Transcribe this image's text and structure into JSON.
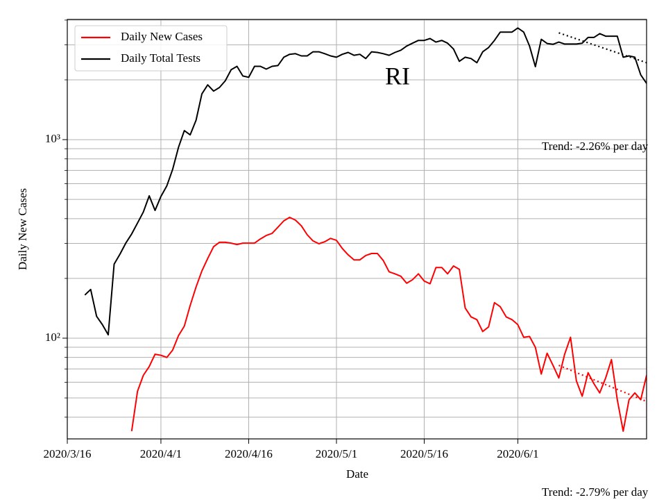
{
  "chart_data": {
    "type": "line",
    "title": "RI",
    "x_label": "Date",
    "y_label": "Daily New Cases",
    "log_scale": true,
    "grid": true,
    "legend_position": "upper left",
    "x": [
      "2020/3/19",
      "2020/3/20",
      "2020/3/21",
      "2020/3/22",
      "2020/3/23",
      "2020/3/24",
      "2020/3/25",
      "2020/3/26",
      "2020/3/27",
      "2020/3/28",
      "2020/3/29",
      "2020/3/30",
      "2020/3/31",
      "2020/4/1",
      "2020/4/2",
      "2020/4/3",
      "2020/4/4",
      "2020/4/5",
      "2020/4/6",
      "2020/4/7",
      "2020/4/8",
      "2020/4/9",
      "2020/4/10",
      "2020/4/11",
      "2020/4/12",
      "2020/4/13",
      "2020/4/14",
      "2020/4/15",
      "2020/4/16",
      "2020/4/17",
      "2020/4/18",
      "2020/4/19",
      "2020/4/20",
      "2020/4/21",
      "2020/4/22",
      "2020/4/23",
      "2020/4/24",
      "2020/4/25",
      "2020/4/26",
      "2020/4/27",
      "2020/4/28",
      "2020/4/29",
      "2020/4/30",
      "2020/5/1",
      "2020/5/2",
      "2020/5/3",
      "2020/5/4",
      "2020/5/5",
      "2020/5/6",
      "2020/5/7",
      "2020/5/8",
      "2020/5/9",
      "2020/5/10",
      "2020/5/11",
      "2020/5/12",
      "2020/5/13",
      "2020/5/14",
      "2020/5/15",
      "2020/5/16",
      "2020/5/17",
      "2020/5/18",
      "2020/5/19",
      "2020/5/20",
      "2020/5/21",
      "2020/5/22",
      "2020/5/23",
      "2020/5/24",
      "2020/5/25",
      "2020/5/26",
      "2020/5/27",
      "2020/5/28",
      "2020/5/29",
      "2020/5/30",
      "2020/5/31",
      "2020/6/1",
      "2020/6/2",
      "2020/6/3",
      "2020/6/4",
      "2020/6/5",
      "2020/6/6",
      "2020/6/7",
      "2020/6/8",
      "2020/6/9",
      "2020/6/10",
      "2020/6/11",
      "2020/6/12",
      "2020/6/13",
      "2020/6/14",
      "2020/6/15",
      "2020/6/16",
      "2020/6/17",
      "2020/6/18",
      "2020/6/19",
      "2020/6/20",
      "2020/6/21",
      "2020/6/22",
      "2020/6/23"
    ],
    "series": [
      {
        "name": "Daily New Cases",
        "color": "#ff0000",
        "values": [
          null,
          null,
          null,
          null,
          null,
          null,
          null,
          null,
          34,
          54,
          65,
          72,
          83,
          82,
          80,
          87,
          103,
          115,
          146,
          181,
          218,
          252,
          289,
          304,
          304,
          301,
          296,
          301,
          301,
          301,
          316,
          329,
          337,
          362,
          390,
          406,
          393,
          368,
          332,
          309,
          299,
          306,
          318,
          311,
          283,
          263,
          248,
          248,
          261,
          267,
          267,
          246,
          216,
          211,
          205,
          189,
          197,
          211,
          194,
          188,
          227,
          227,
          211,
          231,
          222,
          142,
          128,
          124,
          108,
          114,
          151,
          144,
          128,
          124,
          117,
          101,
          102,
          90,
          66,
          84,
          73,
          63,
          83,
          101,
          61,
          51,
          67,
          59,
          53,
          63,
          78,
          49,
          34,
          49,
          53,
          49,
          65
        ]
      },
      {
        "name": "Daily Total Tests",
        "color": "#000000",
        "values": [
          165,
          176,
          129,
          117,
          104,
          236,
          265,
          301,
          335,
          380,
          432,
          521,
          440,
          517,
          584,
          707,
          915,
          1110,
          1057,
          1253,
          1700,
          1888,
          1756,
          1830,
          1978,
          2250,
          2340,
          2092,
          2060,
          2340,
          2340,
          2265,
          2340,
          2360,
          2600,
          2690,
          2710,
          2640,
          2640,
          2770,
          2770,
          2710,
          2640,
          2600,
          2690,
          2750,
          2660,
          2690,
          2560,
          2770,
          2750,
          2710,
          2660,
          2750,
          2820,
          2960,
          3060,
          3160,
          3160,
          3230,
          3100,
          3160,
          3060,
          2860,
          2480,
          2600,
          2560,
          2440,
          2770,
          2910,
          3160,
          3480,
          3480,
          3480,
          3650,
          3480,
          2960,
          2330,
          3200,
          3050,
          3020,
          3100,
          3030,
          3030,
          3030,
          3060,
          3270,
          3270,
          3420,
          3320,
          3320,
          3320,
          2600,
          2640,
          2600,
          2120,
          1920
        ]
      }
    ],
    "trend_lines": [
      {
        "x": [
          "2020/6/8",
          "2020/6/23"
        ],
        "values": [
          3450,
          2440
        ],
        "color": "#000000",
        "label": "Trend: -2.26% per day"
      },
      {
        "x": [
          "2020/6/8",
          "2020/6/23"
        ],
        "values": [
          73,
          48
        ],
        "color": "#ff0000",
        "label": "Trend: -2.79% per day"
      }
    ],
    "xlim": [
      "2020/3/16",
      "2020/6/23"
    ],
    "xticks": [
      "2020/3/16",
      "2020/4/1",
      "2020/4/16",
      "2020/5/1",
      "2020/5/16",
      "2020/6/1"
    ],
    "ylim": [
      31.1,
      4030
    ],
    "yticks": [
      {
        "value": 100,
        "label": "10²"
      },
      {
        "value": 1000,
        "label": "10³"
      }
    ],
    "yminor_ticks": [
      40,
      50,
      60,
      70,
      80,
      90,
      200,
      300,
      400,
      500,
      600,
      700,
      800,
      900,
      2000,
      3000,
      4000
    ]
  }
}
